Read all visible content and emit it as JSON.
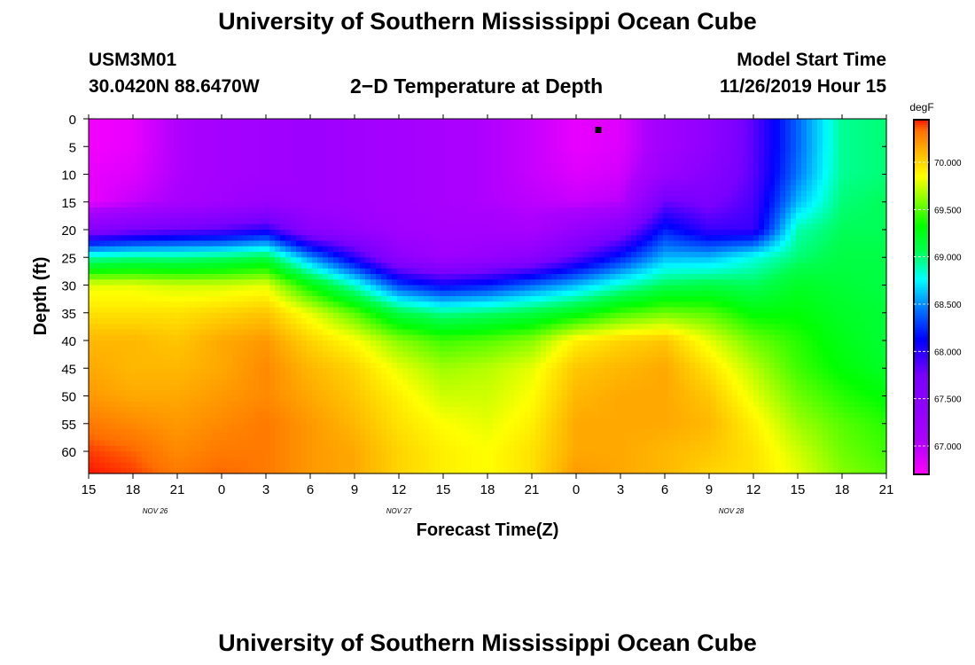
{
  "page": {
    "title": "University of Southern Mississippi Ocean Cube",
    "footer_title": "University of Southern Mississippi Ocean Cube",
    "station_id": "USM3M01",
    "station_coords": "30.0420N 88.6470W",
    "plot_title": "2−D Temperature at Depth",
    "model_start_label": "Model Start Time",
    "model_start_value": "11/26/2019 Hour 15"
  },
  "chart_data": {
    "type": "heatmap",
    "title": "2−D Temperature at Depth",
    "xlabel": "Forecast Time(Z)",
    "ylabel": "Depth (ft)",
    "ylim": [
      0,
      64
    ],
    "y_reversed": true,
    "y_ticks": [
      0,
      5,
      10,
      15,
      20,
      25,
      30,
      35,
      40,
      45,
      50,
      55,
      60
    ],
    "x_tick_labels": [
      "15",
      "18",
      "21",
      "0",
      "3",
      "6",
      "9",
      "12",
      "15",
      "18",
      "21",
      "0",
      "3",
      "6",
      "9",
      "12",
      "15",
      "18",
      "21"
    ],
    "date_labels": [
      {
        "label": "NOV 26",
        "at_tick": 1.5
      },
      {
        "label": "NOV 27",
        "at_tick": 7
      },
      {
        "label": "NOV 28",
        "at_tick": 14.5
      }
    ],
    "colorbar": {
      "unit": "degF",
      "min": 66.7,
      "max": 70.45,
      "tick_labels": [
        "67.000",
        "67.500",
        "68.000",
        "68.500",
        "69.000",
        "69.500",
        "70.000"
      ],
      "tick_values": [
        67.0,
        67.5,
        68.0,
        68.5,
        69.0,
        69.5,
        70.0
      ]
    },
    "marker": {
      "tick": 11.5,
      "depth": 2
    },
    "columns_tick": [
      0,
      1,
      2,
      3,
      4,
      5,
      6,
      7,
      8,
      9,
      10,
      11,
      12,
      13,
      14,
      15,
      16,
      17,
      18
    ],
    "depths": [
      0,
      5,
      10,
      15,
      20,
      25,
      30,
      35,
      40,
      45,
      50,
      55,
      60,
      64
    ],
    "values_degF": [
      [
        66.75,
        66.75,
        66.8,
        66.8,
        67.55,
        68.9,
        69.8,
        69.95,
        70.1,
        70.15,
        70.2,
        70.3,
        70.4,
        70.45
      ],
      [
        66.8,
        66.8,
        66.85,
        66.95,
        67.7,
        68.95,
        69.8,
        69.95,
        70.1,
        70.1,
        70.15,
        70.25,
        70.35,
        70.4
      ],
      [
        67.05,
        67.05,
        67.05,
        67.1,
        67.8,
        68.95,
        69.75,
        69.95,
        70.05,
        70.1,
        70.15,
        70.2,
        70.25,
        70.3
      ],
      [
        67.15,
        67.15,
        67.15,
        67.2,
        67.85,
        69.0,
        69.75,
        70.0,
        70.15,
        70.15,
        70.2,
        70.25,
        70.3,
        70.35
      ],
      [
        67.2,
        67.2,
        67.2,
        67.3,
        68.0,
        69.1,
        69.8,
        70.05,
        70.2,
        70.25,
        70.25,
        70.3,
        70.3,
        70.3
      ],
      [
        67.25,
        67.25,
        67.25,
        67.25,
        67.5,
        68.5,
        69.3,
        69.8,
        70.0,
        70.1,
        70.15,
        70.2,
        70.2,
        70.2
      ],
      [
        67.2,
        67.2,
        67.2,
        67.2,
        67.35,
        68.0,
        68.85,
        69.5,
        69.85,
        70.0,
        70.05,
        70.1,
        70.15,
        70.15
      ],
      [
        67.15,
        67.15,
        67.15,
        67.15,
        67.2,
        67.45,
        68.3,
        69.1,
        69.6,
        69.8,
        69.9,
        69.95,
        70.0,
        70.0
      ],
      [
        67.1,
        67.1,
        67.1,
        67.1,
        67.15,
        67.25,
        68.1,
        68.95,
        69.45,
        69.65,
        69.75,
        69.85,
        69.9,
        69.9
      ],
      [
        67.05,
        67.05,
        67.05,
        67.05,
        67.15,
        67.35,
        68.2,
        69.0,
        69.5,
        69.7,
        69.75,
        69.8,
        69.85,
        69.85
      ],
      [
        66.95,
        66.95,
        66.95,
        67.0,
        67.1,
        67.5,
        68.4,
        69.1,
        69.6,
        69.8,
        69.85,
        69.9,
        69.95,
        69.95
      ],
      [
        66.8,
        66.8,
        66.85,
        66.95,
        67.35,
        67.85,
        68.6,
        69.25,
        69.9,
        70.05,
        70.1,
        70.15,
        70.15,
        70.2
      ],
      [
        66.85,
        66.85,
        66.9,
        67.0,
        67.6,
        68.2,
        68.85,
        69.45,
        70.0,
        70.1,
        70.15,
        70.15,
        70.15,
        70.15
      ],
      [
        67.2,
        67.2,
        67.3,
        67.8,
        68.2,
        68.6,
        69.05,
        69.55,
        70.05,
        70.15,
        70.15,
        70.15,
        70.1,
        70.1
      ],
      [
        67.45,
        67.45,
        67.55,
        67.7,
        67.95,
        68.6,
        69.1,
        69.5,
        69.8,
        69.95,
        70.05,
        70.1,
        70.05,
        70.0
      ],
      [
        67.85,
        67.85,
        67.85,
        67.9,
        67.95,
        68.8,
        69.05,
        69.3,
        69.55,
        69.7,
        69.8,
        69.9,
        69.95,
        69.95
      ],
      [
        68.4,
        68.4,
        68.45,
        68.6,
        68.9,
        69.0,
        69.2,
        69.3,
        69.4,
        69.45,
        69.55,
        69.65,
        69.75,
        69.8
      ],
      [
        68.95,
        68.95,
        68.95,
        69.0,
        69.05,
        69.1,
        69.15,
        69.2,
        69.25,
        69.3,
        69.4,
        69.5,
        69.55,
        69.6
      ],
      [
        69.0,
        69.0,
        69.0,
        69.05,
        69.05,
        69.1,
        69.1,
        69.15,
        69.15,
        69.2,
        69.3,
        69.4,
        69.45,
        69.5
      ]
    ]
  }
}
